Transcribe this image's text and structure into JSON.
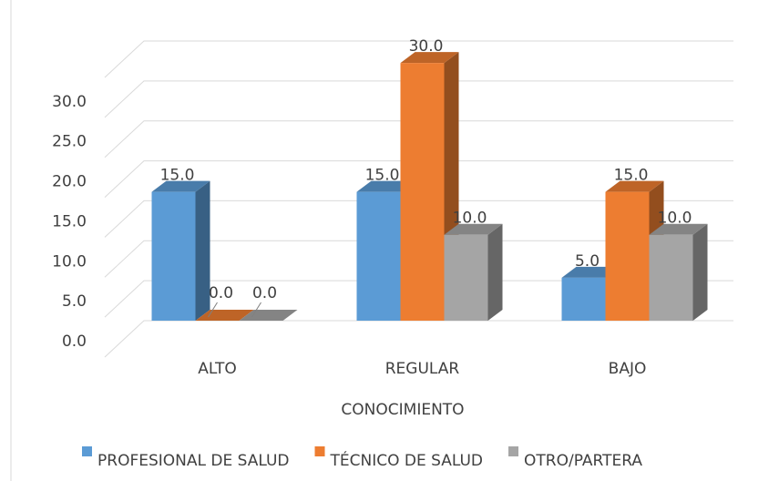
{
  "chart_data": {
    "type": "bar3d",
    "x_label": "CONOCIMIENTO",
    "categories": [
      "ALTO",
      "REGULAR",
      "BAJO"
    ],
    "series": [
      {
        "name": "PROFESIONAL DE SALUD",
        "color": "#5b9bd5",
        "values": [
          15,
          15,
          5
        ],
        "value_labels": [
          "15.0",
          "15.0",
          "5.0"
        ]
      },
      {
        "name": "TÉCNICO DE SALUD",
        "color": "#ed7d31",
        "values": [
          0,
          30,
          15
        ],
        "value_labels": [
          "0.0",
          "30.0",
          "15.0"
        ]
      },
      {
        "name": "OTRO/PARTERA",
        "color": "#a5a5a5",
        "values": [
          0,
          10,
          10
        ],
        "value_labels": [
          "0.0",
          "10.0",
          "10.0"
        ]
      }
    ],
    "ylim": [
      0,
      35
    ],
    "yticks": [
      {
        "value": 0,
        "label": "0.0"
      },
      {
        "value": 5,
        "label": "5.0"
      },
      {
        "value": 10,
        "label": "10.0"
      },
      {
        "value": 15,
        "label": "15.0"
      },
      {
        "value": 20,
        "label": "20.0"
      },
      {
        "value": 25,
        "label": "25.0"
      },
      {
        "value": 30,
        "label": "30.0"
      }
    ],
    "grid": true,
    "legend": "bottom"
  }
}
